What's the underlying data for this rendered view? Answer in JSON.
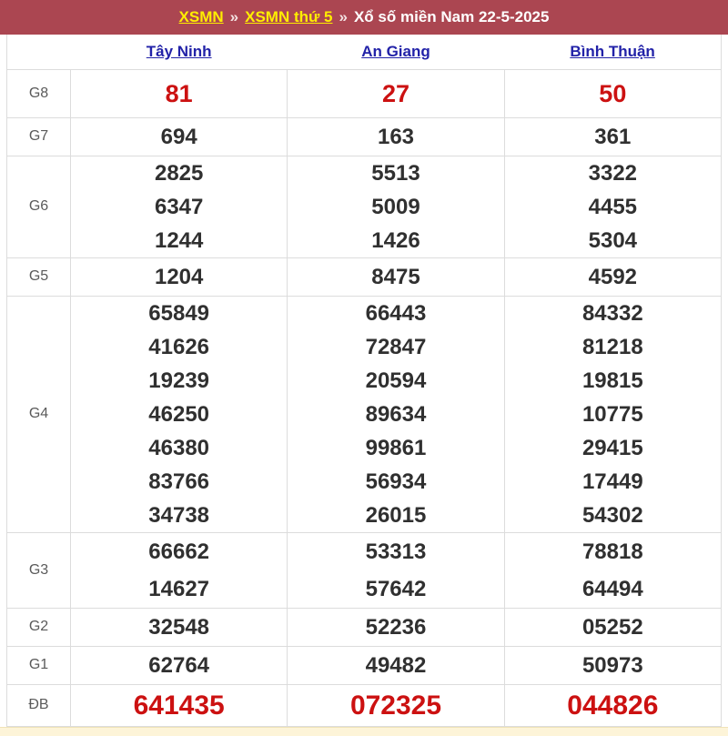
{
  "breadcrumb": {
    "links": [
      {
        "label": "XSMN"
      },
      {
        "label": "XSMN thứ 5"
      }
    ],
    "separator": "»",
    "tail": "Xổ số miền Nam 22-5-2025"
  },
  "table": {
    "provinces": [
      "Tây Ninh",
      "An Giang",
      "Bình Thuận"
    ],
    "rows": [
      {
        "label": "G8",
        "cells": [
          [
            "81"
          ],
          [
            "27"
          ],
          [
            "50"
          ]
        ]
      },
      {
        "label": "G7",
        "cells": [
          [
            "694"
          ],
          [
            "163"
          ],
          [
            "361"
          ]
        ]
      },
      {
        "label": "G6",
        "cells": [
          [
            "2825",
            "6347",
            "1244"
          ],
          [
            "5513",
            "5009",
            "1426"
          ],
          [
            "3322",
            "4455",
            "5304"
          ]
        ]
      },
      {
        "label": "G5",
        "cells": [
          [
            "1204"
          ],
          [
            "8475"
          ],
          [
            "4592"
          ]
        ]
      },
      {
        "label": "G4",
        "cells": [
          [
            "65849",
            "41626",
            "19239",
            "46250",
            "46380",
            "83766",
            "34738"
          ],
          [
            "66443",
            "72847",
            "20594",
            "89634",
            "99861",
            "56934",
            "26015"
          ],
          [
            "84332",
            "81218",
            "19815",
            "10775",
            "29415",
            "17449",
            "54302"
          ]
        ]
      },
      {
        "label": "G3",
        "cells": [
          [
            "66662",
            "14627"
          ],
          [
            "53313",
            "57642"
          ],
          [
            "78818",
            "64494"
          ]
        ]
      },
      {
        "label": "G2",
        "cells": [
          [
            "32548"
          ],
          [
            "52236"
          ],
          [
            "05252"
          ]
        ]
      },
      {
        "label": "G1",
        "cells": [
          [
            "62764"
          ],
          [
            "49482"
          ],
          [
            "50973"
          ]
        ]
      },
      {
        "label": "ĐB",
        "cells": [
          [
            "641435"
          ],
          [
            "072325"
          ],
          [
            "044826"
          ]
        ]
      }
    ]
  },
  "colors": {
    "header_bg": "#ab4651",
    "link_yellow": "#ffee00",
    "link_navy": "#2222a8",
    "number_dark": "#303030",
    "number_red": "#cc1111",
    "row_label_gray": "#5a5a5a",
    "border": "#dcdcdc",
    "footer_strip": "#fdf4d8"
  }
}
